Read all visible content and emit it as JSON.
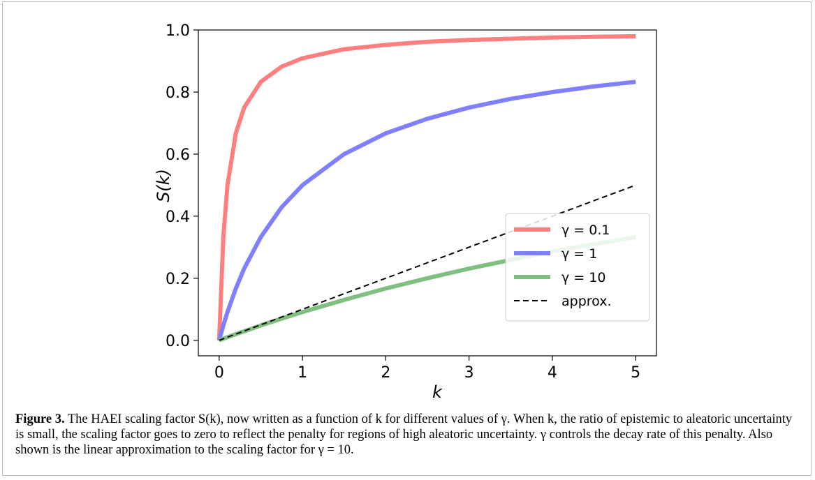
{
  "figure": {
    "caption_label": "Figure 3.",
    "caption_text": " The HAEI scaling factor S(k), now written as a function of k for different values of γ. When k, the ratio of epistemic to aleatoric uncertainty is small, the scaling factor goes to zero to reflect the penalty for regions of high aleatoric uncertainty. γ controls the decay rate of this penalty. Also shown is the linear approximation to the scaling factor for γ = 10."
  },
  "chart_data": {
    "type": "line",
    "xlabel": "k",
    "ylabel": "S(k)",
    "xlim": [
      -0.25,
      5.25
    ],
    "ylim": [
      -0.05,
      1.0
    ],
    "xticks": [
      0,
      1,
      2,
      3,
      4,
      5
    ],
    "yticks": [
      0.0,
      0.2,
      0.4,
      0.6,
      0.8,
      1.0
    ],
    "xtick_labels": [
      "0",
      "1",
      "2",
      "3",
      "4",
      "5"
    ],
    "ytick_labels": [
      "0.0",
      "0.2",
      "0.4",
      "0.6",
      "0.8",
      "1.0"
    ],
    "grid": false,
    "legend_position": "lower-right",
    "x": [
      0,
      0.05,
      0.1,
      0.2,
      0.3,
      0.5,
      0.75,
      1,
      1.5,
      2,
      2.5,
      3,
      3.5,
      4,
      4.5,
      5
    ],
    "series": [
      {
        "name": "γ = 0.1",
        "color": "#ff7f7f",
        "style": "solid",
        "values": [
          0,
          0.333,
          0.5,
          0.667,
          0.75,
          0.833,
          0.882,
          0.909,
          0.938,
          0.952,
          0.962,
          0.968,
          0.972,
          0.976,
          0.978,
          0.98
        ]
      },
      {
        "name": "γ = 1",
        "color": "#7f7fff",
        "style": "solid",
        "values": [
          0,
          0.048,
          0.091,
          0.167,
          0.231,
          0.333,
          0.429,
          0.5,
          0.6,
          0.667,
          0.714,
          0.75,
          0.778,
          0.8,
          0.818,
          0.833
        ]
      },
      {
        "name": "γ = 10",
        "color": "#7fbf7f",
        "style": "solid",
        "values": [
          0,
          0.005,
          0.01,
          0.02,
          0.029,
          0.048,
          0.07,
          0.091,
          0.13,
          0.167,
          0.2,
          0.231,
          0.259,
          0.286,
          0.31,
          0.333
        ]
      },
      {
        "name": "approx.",
        "color": "#000000",
        "style": "dashed",
        "values": [
          0,
          0.005,
          0.01,
          0.02,
          0.03,
          0.05,
          0.075,
          0.1,
          0.15,
          0.2,
          0.25,
          0.3,
          0.35,
          0.4,
          0.45,
          0.5
        ]
      }
    ]
  }
}
